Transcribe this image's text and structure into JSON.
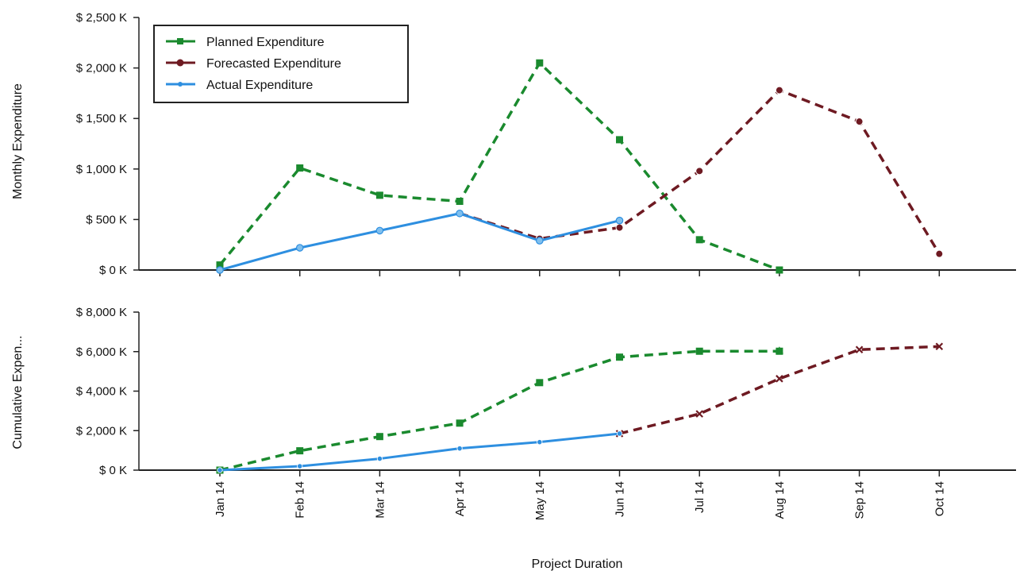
{
  "chart_data": [
    {
      "type": "line",
      "ylabel": "Monthly Expenditure",
      "ylim": [
        0,
        2500
      ],
      "y_ticks": [
        "$ 0 K",
        "$ 500 K",
        "$ 1,000 K",
        "$ 1,500 K",
        "$ 2,000 K",
        "$ 2,500 K"
      ],
      "y_tick_values": [
        0,
        500,
        1000,
        1500,
        2000,
        2500
      ],
      "categories": [
        "Jan 14",
        "Feb 14",
        "Mar 14",
        "Apr 14",
        "May 14",
        "Jun 14",
        "Jul 14",
        "Aug 14",
        "Sep 14",
        "Oct 14"
      ],
      "legend": {
        "position": "top-left",
        "entries": [
          "Planned Expenditure",
          "Forecasted Expenditure",
          "Actual Expenditure"
        ]
      },
      "series": [
        {
          "name": "Planned Expenditure",
          "color": "#1a8a2e",
          "dash": true,
          "marker": "square",
          "x": [
            "Jan 14",
            "Feb 14",
            "Mar 14",
            "Apr 14",
            "May 14",
            "Jun 14",
            "Jul 14",
            "Aug 14"
          ],
          "values": [
            50,
            1010,
            740,
            680,
            2050,
            1290,
            300,
            0
          ]
        },
        {
          "name": "Forecasted Expenditure",
          "color": "#6e1a22",
          "dash": true,
          "marker": "circle",
          "x": [
            "Apr 14",
            "May 14",
            "Jun 14",
            "Jul 14",
            "Aug 14",
            "Sep 14",
            "Oct 14"
          ],
          "values": [
            560,
            310,
            420,
            980,
            1780,
            1470,
            160
          ]
        },
        {
          "name": "Actual Expenditure",
          "color": "#2e8fe0",
          "dash": false,
          "marker": "diamond",
          "x": [
            "Jan 14",
            "Feb 14",
            "Mar 14",
            "Apr 14",
            "May 14",
            "Jun 14"
          ],
          "values": [
            0,
            220,
            390,
            560,
            290,
            490
          ]
        }
      ]
    },
    {
      "type": "line",
      "xlabel": "Project Duration",
      "ylabel": "Cumulative Expen...",
      "ylim": [
        0,
        8000
      ],
      "y_ticks": [
        "$ 0 K",
        "$ 2,000 K",
        "$ 4,000 K",
        "$ 6,000 K",
        "$ 8,000 K"
      ],
      "y_tick_values": [
        0,
        2000,
        4000,
        6000,
        8000
      ],
      "categories": [
        "Jan 14",
        "Feb 14",
        "Mar 14",
        "Apr 14",
        "May 14",
        "Jun 14",
        "Jul 14",
        "Aug 14",
        "Sep 14",
        "Oct 14"
      ],
      "series": [
        {
          "name": "Planned Expenditure",
          "color": "#1a8a2e",
          "dash": true,
          "marker": "square",
          "x": [
            "Jan 14",
            "Feb 14",
            "Mar 14",
            "Apr 14",
            "May 14",
            "Jun 14",
            "Jul 14",
            "Aug 14"
          ],
          "values": [
            0,
            980,
            1700,
            2380,
            4430,
            5720,
            6020,
            6020
          ]
        },
        {
          "name": "Forecasted Expenditure",
          "color": "#6e1a22",
          "dash": true,
          "marker": "x",
          "x": [
            "Jun 14",
            "Jul 14",
            "Aug 14",
            "Sep 14",
            "Oct 14"
          ],
          "values": [
            1850,
            2850,
            4630,
            6100,
            6260
          ]
        },
        {
          "name": "Actual Expenditure",
          "color": "#2e8fe0",
          "dash": false,
          "marker": "dot",
          "x": [
            "Jan 14",
            "Feb 14",
            "Mar 14",
            "Apr 14",
            "May 14",
            "Jun 14"
          ],
          "values": [
            0,
            200,
            580,
            1100,
            1420,
            1850
          ]
        }
      ]
    }
  ]
}
